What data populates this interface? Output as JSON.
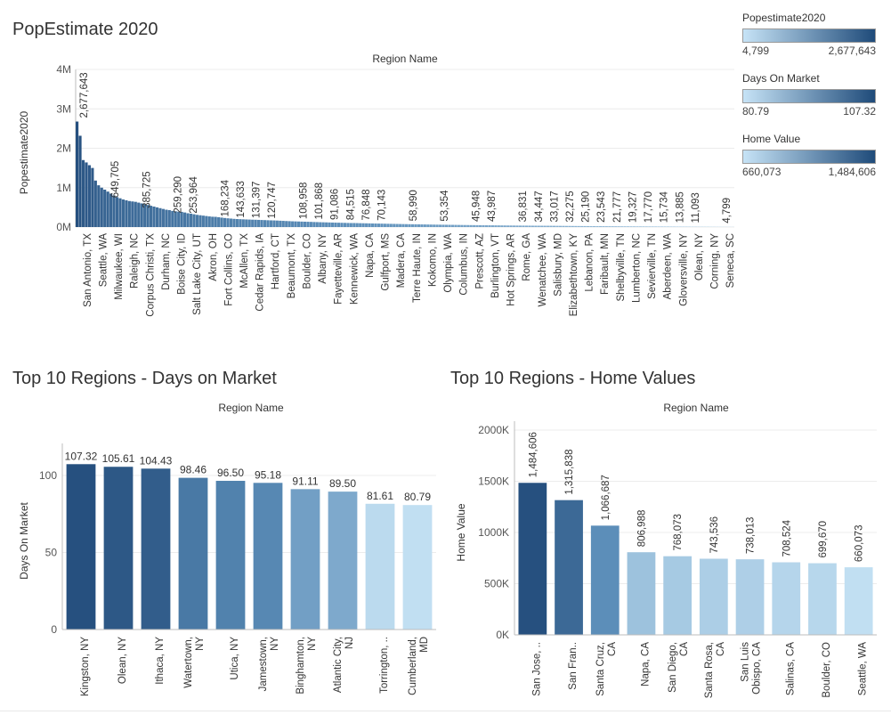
{
  "colors": {
    "light": "#c1dff2",
    "mid": "#5b8db8",
    "dark": "#26507f",
    "grid": "#ececec",
    "axis": "#bdbdbd"
  },
  "legends": [
    {
      "title": "Popestimate2020",
      "min_label": "4,799",
      "max_label": "2,677,643"
    },
    {
      "title": "Days On Market",
      "min_label": "80.79",
      "max_label": "107.32"
    },
    {
      "title": "Home Value",
      "min_label": "660,073",
      "max_label": "1,484,606"
    }
  ],
  "chart_data": [
    {
      "type": "bar",
      "title": "PopEstimate 2020",
      "xlabel": "Region Name",
      "ylabel": "Popestimate2020",
      "ylim": [
        0,
        4000000
      ],
      "yticks": [
        "0M",
        "1M",
        "2M",
        "3M",
        "4M"
      ],
      "ytick_values": [
        0,
        1000000,
        2000000,
        3000000,
        4000000
      ],
      "grid": true,
      "bar_values": [
        2677643,
        2317000,
        1700000,
        1640000,
        1570000,
        1500000,
        1180000,
        1060000,
        1000000,
        950000,
        900000,
        850000,
        800000,
        760000,
        730000,
        700000,
        680000,
        660000,
        649705,
        640000,
        620000,
        600000,
        580000,
        560000,
        540000,
        520000,
        500000,
        480000,
        460000,
        440000,
        430000,
        410000,
        400000,
        390000,
        385725,
        370000,
        350000,
        340000,
        325000,
        310000,
        300000,
        290000,
        280000,
        270000,
        262000,
        259290,
        250000,
        240000,
        230000,
        222000,
        215000,
        208000,
        203000,
        200000,
        196000,
        193000,
        190000,
        187000,
        185000,
        182000,
        179000,
        176000,
        173000,
        170000,
        168234,
        165000,
        161000,
        157000,
        153000,
        150000,
        146000,
        143633,
        141000,
        138500,
        136000,
        134000,
        131397,
        128000,
        125500,
        123000,
        120747,
        118500,
        116000,
        114000,
        112000,
        110000,
        108000,
        106000,
        104000,
        102000,
        101868,
        100000,
        98000,
        96500,
        94800,
        93200,
        91086,
        89500,
        88000,
        86500,
        84515,
        83000,
        81500,
        80000,
        78500,
        76848,
        75300,
        73800,
        72400,
        71100,
        70143,
        68700,
        67400,
        66100,
        64800,
        63500,
        62300,
        61100,
        59990,
        58990,
        57900,
        56800,
        55700,
        54600,
        53354,
        52300,
        51300,
        50300,
        49400,
        48500,
        47700,
        46900,
        45948,
        45100,
        44600,
        43987,
        43200,
        42400,
        41600,
        40800,
        40000,
        39300,
        38600,
        37900,
        37200,
        36831,
        36200,
        35600,
        35000,
        34447,
        33900,
        33500,
        33017,
        32700,
        32275,
        31600,
        30900,
        30200,
        29500,
        28800,
        28100,
        27400,
        26700,
        26000,
        25190,
        24700,
        24200,
        23543,
        23100,
        22700,
        22300,
        21777,
        21300,
        20800,
        20300,
        19800,
        19327,
        18900,
        18500,
        18100,
        17770,
        17300,
        16900,
        16500,
        16100,
        15734,
        15300,
        14900,
        14500,
        14200,
        13885,
        13500,
        13100,
        12700,
        12300,
        11900,
        11500,
        11093,
        10700,
        10300,
        9900,
        9500,
        9100,
        8700,
        8300,
        7900,
        7500,
        7100,
        6700,
        6300,
        5900,
        5500,
        5200,
        4799
      ],
      "labeled_points": [
        {
          "category": "San Antonio, TX",
          "value": 2677643,
          "label": "2,677,643"
        },
        {
          "category": "Seattle, WA",
          "value": null,
          "label": ""
        },
        {
          "category": "Milwaukee, WI",
          "value": 649705,
          "label": "649,705"
        },
        {
          "category": "Raleigh, NC",
          "value": null,
          "label": ""
        },
        {
          "category": "Corpus Christi, TX",
          "value": 385725,
          "label": "385,725"
        },
        {
          "category": "Durham, NC",
          "value": null,
          "label": ""
        },
        {
          "category": "Boise City, ID",
          "value": 259290,
          "label": "259,290"
        },
        {
          "category": "Salt Lake City, UT",
          "value": 253964,
          "label": "253,964"
        },
        {
          "category": "Akron, OH",
          "value": null,
          "label": ""
        },
        {
          "category": "Fort Collins, CO",
          "value": 168234,
          "label": "168,234"
        },
        {
          "category": "McAllen, TX",
          "value": 143633,
          "label": "143,633"
        },
        {
          "category": "Cedar Rapids, IA",
          "value": 131397,
          "label": "131,397"
        },
        {
          "category": "Hartford, CT",
          "value": 120747,
          "label": "120,747"
        },
        {
          "category": "Beaumont, TX",
          "value": null,
          "label": ""
        },
        {
          "category": "Boulder, CO",
          "value": 108958,
          "label": "108,958"
        },
        {
          "category": "Albany, NY",
          "value": 101868,
          "label": "101,868"
        },
        {
          "category": "Fayetteville, AR",
          "value": 91086,
          "label": "91,086"
        },
        {
          "category": "Kennewick, WA",
          "value": 84515,
          "label": "84,515"
        },
        {
          "category": "Napa, CA",
          "value": 76848,
          "label": "76,848"
        },
        {
          "category": "Gulfport, MS",
          "value": 70143,
          "label": "70,143"
        },
        {
          "category": "Madera, CA",
          "value": null,
          "label": ""
        },
        {
          "category": "Terre Haute, IN",
          "value": 58990,
          "label": "58,990"
        },
        {
          "category": "Kokomo, IN",
          "value": null,
          "label": ""
        },
        {
          "category": "Olympia, WA",
          "value": 53354,
          "label": "53,354"
        },
        {
          "category": "Columbus, IN",
          "value": null,
          "label": ""
        },
        {
          "category": "Prescott, AZ",
          "value": 45948,
          "label": "45,948"
        },
        {
          "category": "Burlington, VT",
          "value": 43987,
          "label": "43,987"
        },
        {
          "category": "Hot Springs, AR",
          "value": null,
          "label": ""
        },
        {
          "category": "Rome, GA",
          "value": 36831,
          "label": "36,831"
        },
        {
          "category": "Wenatchee, WA",
          "value": 34447,
          "label": "34,447"
        },
        {
          "category": "Salisbury, MD",
          "value": 33017,
          "label": "33,017"
        },
        {
          "category": "Elizabethtown, KY",
          "value": 32275,
          "label": "32,275"
        },
        {
          "category": "Lebanon, PA",
          "value": 25190,
          "label": "25,190"
        },
        {
          "category": "Faribault, MN",
          "value": 23543,
          "label": "23,543"
        },
        {
          "category": "Shelbyville, TN",
          "value": 21777,
          "label": "21,777"
        },
        {
          "category": "Lumberton, NC",
          "value": 19327,
          "label": "19,327"
        },
        {
          "category": "Sevierville, TN",
          "value": 17770,
          "label": "17,770"
        },
        {
          "category": "Aberdeen, WA",
          "value": 15734,
          "label": "15,734"
        },
        {
          "category": "Gloversville, NY",
          "value": 13885,
          "label": "13,885"
        },
        {
          "category": "Olean, NY",
          "value": 11093,
          "label": "11,093"
        },
        {
          "category": "Corning, NY",
          "value": null,
          "label": ""
        },
        {
          "category": "Seneca, SC",
          "value": 4799,
          "label": "4,799"
        }
      ]
    },
    {
      "type": "bar",
      "title": "Top 10 Regions - Days on Market",
      "xlabel": "Region Name",
      "ylabel": "Days On Market",
      "ylim": [
        0,
        115
      ],
      "yticks": [
        "0",
        "50",
        "100"
      ],
      "ytick_values": [
        0,
        50,
        100
      ],
      "grid": true,
      "categories": [
        "Kingston, NY",
        "Olean, NY",
        "Ithaca, NY",
        "Watertown,\nNY",
        "Utica, NY",
        "Jamestown,\nNY",
        "Binghamton,\nNY",
        "Atlantic City,\nNJ",
        "Torrington, ..",
        "Cumberland,\nMD"
      ],
      "values": [
        107.32,
        105.61,
        104.43,
        98.46,
        96.5,
        95.18,
        91.11,
        89.5,
        81.61,
        80.79
      ],
      "labels": [
        "107.32",
        "105.61",
        "104.43",
        "98.46",
        "96.50",
        "95.18",
        "91.11",
        "89.50",
        "81.61",
        "80.79"
      ]
    },
    {
      "type": "bar",
      "title": "Top 10 Regions - Home Values",
      "xlabel": "Region Name",
      "ylabel": "Home Value",
      "ylim": [
        0,
        2000000
      ],
      "yticks": [
        "0K",
        "500K",
        "1000K",
        "1500K",
        "2000K"
      ],
      "ytick_values": [
        0,
        500000,
        1000000,
        1500000,
        2000000
      ],
      "grid": true,
      "categories": [
        "San Jose, ..",
        "San Fran..",
        "Santa Cruz,\nCA",
        "Napa, CA",
        "San Diego,\nCA",
        "Santa Rosa,\nCA",
        "San Luis\nObispo, CA",
        "Salinas, CA",
        "Boulder, CO",
        "Seattle, WA"
      ],
      "values": [
        1484606,
        1315838,
        1066687,
        806988,
        768073,
        743536,
        738013,
        708524,
        699670,
        660073
      ],
      "labels": [
        "1,484,606",
        "1,315,838",
        "1,066,687",
        "806,988",
        "768,073",
        "743,536",
        "738,013",
        "708,524",
        "699,670",
        "660,073"
      ]
    }
  ]
}
